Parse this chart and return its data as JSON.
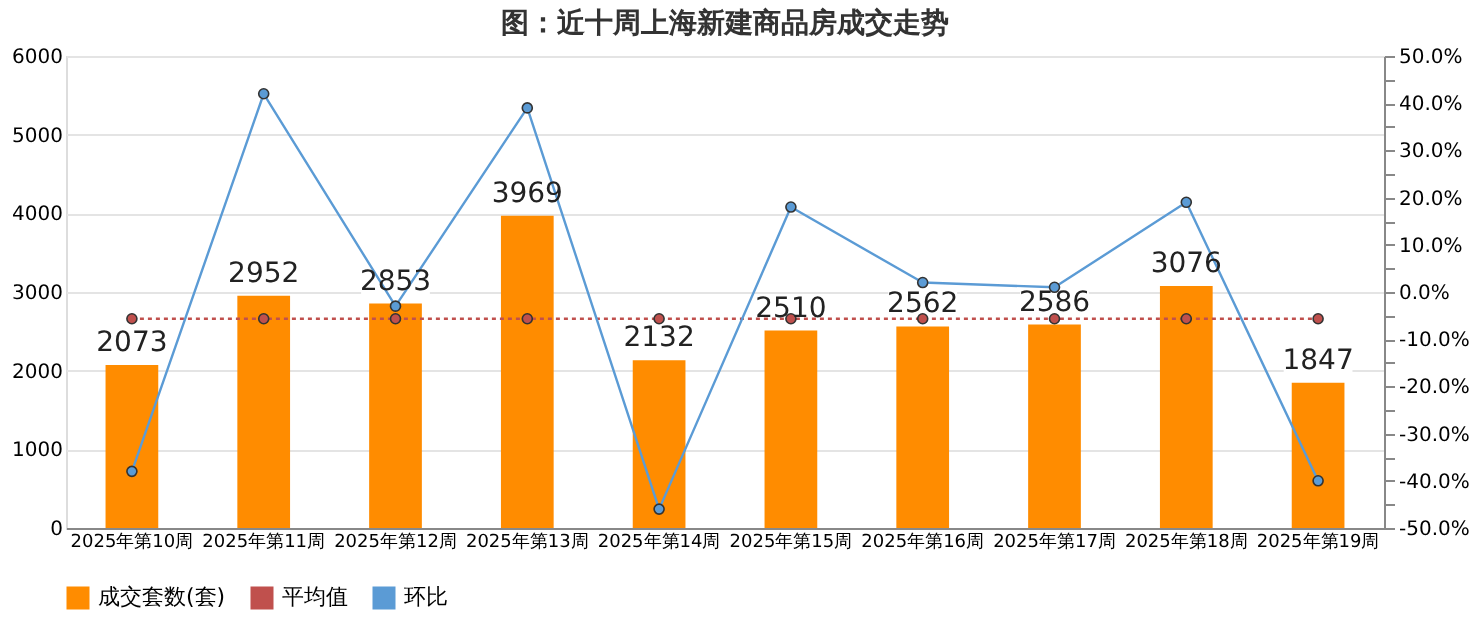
{
  "chart_data": {
    "type": "bar",
    "title": "图：近十周上海新建商品房成交走势",
    "categories": [
      "2025年第10周",
      "2025年第11周",
      "2025年第12周",
      "2025年第13周",
      "2025年第14周",
      "2025年第15周",
      "2025年第16周",
      "2025年第17周",
      "2025年第18周",
      "2025年第19周"
    ],
    "series": [
      {
        "name": "成交套数(套)",
        "color": "#ff8c00",
        "values": [
          2073,
          2952,
          2853,
          3969,
          2132,
          2510,
          2562,
          2586,
          3076,
          1847
        ],
        "value_labels": [
          "2073",
          "2952",
          "2853",
          "3969",
          "2132",
          "2510",
          "2562",
          "2586",
          "3076",
          "1847"
        ]
      },
      {
        "name": "平均值",
        "type": "line",
        "color": "#c0504d",
        "line_style": "dotted",
        "marker": "circle",
        "values": [
          2660,
          2660,
          2660,
          2660,
          2660,
          2660,
          2660,
          2660,
          2660,
          2660
        ]
      },
      {
        "name": "环比",
        "type": "line",
        "axis": "y2",
        "color": "#5b9bd5",
        "line_style": "solid",
        "marker": "circle",
        "values": [
          -38,
          42,
          -3,
          39,
          -46,
          18,
          2,
          1,
          19,
          -40
        ]
      }
    ],
    "ylim": [
      0,
      6000
    ],
    "yticks": [
      0,
      1000,
      2000,
      3000,
      4000,
      5000,
      6000
    ],
    "y2lim": [
      -50,
      50
    ],
    "y2ticks": [
      {
        "value": -50,
        "label": "-50.0%"
      },
      {
        "value": -45,
        "label": null
      },
      {
        "value": -40,
        "label": "-40.0%"
      },
      {
        "value": -35,
        "label": null
      },
      {
        "value": -30,
        "label": "-30.0%"
      },
      {
        "value": -25,
        "label": null
      },
      {
        "value": -20,
        "label": "-20.0%"
      },
      {
        "value": -15,
        "label": null
      },
      {
        "value": -10,
        "label": "-10.0%"
      },
      {
        "value": -5,
        "label": null
      },
      {
        "value": 0,
        "label": "0.0%"
      },
      {
        "value": 5,
        "label": null
      },
      {
        "value": 10,
        "label": "10.0%"
      },
      {
        "value": 15,
        "label": null
      },
      {
        "value": 20,
        "label": "20.0%"
      },
      {
        "value": 25,
        "label": null
      },
      {
        "value": 30,
        "label": "30.0%"
      },
      {
        "value": 35,
        "label": null
      },
      {
        "value": 40,
        "label": "40.0%"
      },
      {
        "value": 45,
        "label": null
      },
      {
        "value": 50,
        "label": "50.0%"
      }
    ],
    "grid": "y",
    "legend": "bottom"
  }
}
